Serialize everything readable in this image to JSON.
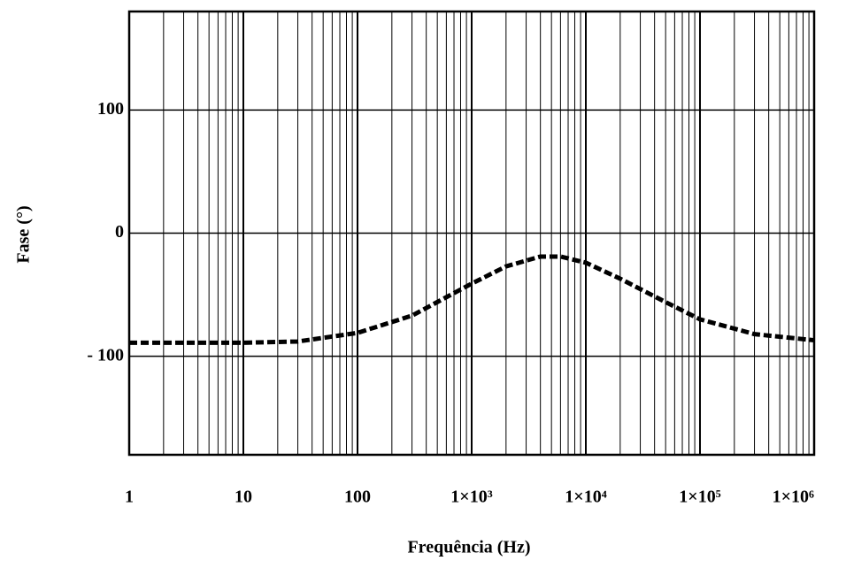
{
  "chart_data": {
    "type": "line",
    "xscale": "log",
    "grid": true,
    "xlabel": "Frequência (Hz)",
    "ylabel": "Fase (°)",
    "x": [
      1,
      10,
      30,
      100,
      300,
      1000,
      2000,
      4000,
      6000,
      10000,
      20000,
      50000,
      100000,
      300000,
      1000000
    ],
    "series": [
      {
        "color": "#000000",
        "values": [
          -89,
          -89,
          -88,
          -81,
          -67,
          -41,
          -27,
          -19,
          -19,
          -24,
          -37,
          -56,
          -70,
          -82,
          -87
        ]
      }
    ],
    "xlim": [
      1,
      1000000
    ],
    "xticks": [
      1,
      10,
      100,
      {
        "value": 1000,
        "label": "1×10³"
      },
      {
        "value": 10000,
        "label": "1×10⁴"
      },
      {
        "value": 100000,
        "label": "1×10⁵"
      },
      {
        "value": 1000000,
        "label": "1×10⁶"
      }
    ],
    "ylim": [
      -180,
      180
    ],
    "yticks": [
      100,
      0,
      {
        "value": -100,
        "label": "- 100"
      }
    ]
  }
}
